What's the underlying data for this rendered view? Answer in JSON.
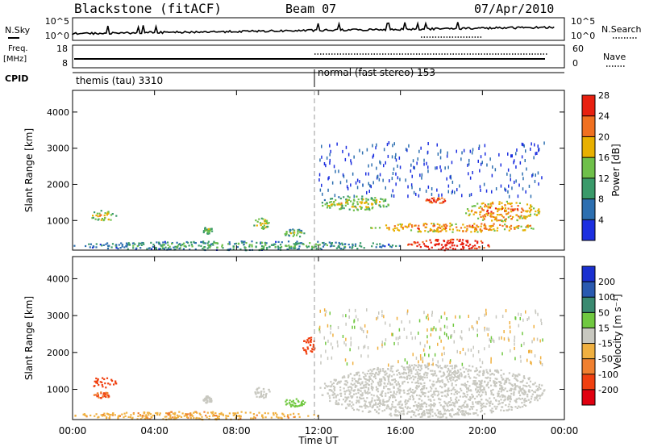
{
  "header": {
    "station": "Blackstone (fitACF)",
    "beam": "Beam 07",
    "date": "07/Apr/2010"
  },
  "top_panels": {
    "nsky_label": "N.Sky",
    "nsky_ticks": [
      "10^5",
      "10^0"
    ],
    "nsearch_label": "N.Search",
    "nsearch_ticks": [
      "10^5",
      "10^0"
    ],
    "freq_label": "Freq.",
    "freq_unit": "[MHz]",
    "freq_ticks": [
      "18",
      "8"
    ],
    "nave_label": "Nave",
    "nave_ticks": [
      "60",
      "0"
    ],
    "cpid_label": "CPID",
    "cpid_segments": [
      {
        "label": "themis (tau) 3310",
        "start_hour": 0,
        "end_hour": 12
      },
      {
        "label": "normal (fast stereo) 153",
        "start_hour": 12,
        "end_hour": 23.5
      }
    ]
  },
  "x_axis": {
    "label": "Time UT",
    "ticks": [
      "00:00",
      "04:00",
      "08:00",
      "12:00",
      "16:00",
      "20:00",
      "00:00"
    ],
    "range_hours": [
      0,
      24
    ]
  },
  "panels": [
    {
      "name": "power",
      "ylabel": "Slant Range [km]",
      "yticks": [
        "1000",
        "2000",
        "3000",
        "4000"
      ],
      "colorbar_label": "Power [dB]",
      "colorbar_ticks": [
        "4",
        "8",
        "12",
        "16",
        "20",
        "24",
        "28"
      ],
      "colorbar_colors": [
        "#1c2fe0",
        "#2d6fb0",
        "#3a9a6a",
        "#6fc04a",
        "#e8b000",
        "#f07020",
        "#e82010"
      ]
    },
    {
      "name": "velocity",
      "ylabel": "Slant Range [km]",
      "yticks": [
        "1000",
        "2000",
        "3000",
        "4000"
      ],
      "colorbar_label": "Velocity [m s⁻¹]",
      "colorbar_ticks": [
        "-200",
        "-100",
        "-50",
        "-15",
        "15",
        "50",
        "100",
        "200"
      ],
      "colorbar_colors": [
        "#e00010",
        "#f04010",
        "#f08030",
        "#f0b040",
        "#c8c8c0",
        "#70c840",
        "#3a8a70",
        "#2a5ab0",
        "#1a30d0"
      ]
    }
  ],
  "chart_data": {
    "type": "heatmap",
    "x_range_hours": [
      0,
      24
    ],
    "y_range_km": [
      180,
      4600
    ],
    "power_blobs": [
      {
        "t0": 0.8,
        "t1": 2.1,
        "r0": 1000,
        "r1": 1300,
        "dB": 14
      },
      {
        "t0": 6.3,
        "t1": 6.8,
        "r0": 650,
        "r1": 850,
        "dB": 10
      },
      {
        "t0": 8.8,
        "t1": 9.6,
        "r0": 780,
        "r1": 1100,
        "dB": 13
      },
      {
        "t0": 10.3,
        "t1": 11.3,
        "r0": 550,
        "r1": 780,
        "dB": 11
      },
      {
        "t0": 12.0,
        "t1": 15.5,
        "r0": 1300,
        "r1": 1700,
        "dB": 13
      },
      {
        "t0": 14.5,
        "t1": 22.8,
        "r0": 700,
        "r1": 950,
        "dB": 18
      },
      {
        "t0": 16.2,
        "t1": 20.5,
        "r0": 200,
        "r1": 500,
        "dB": 26
      },
      {
        "t0": 19.0,
        "t1": 22.8,
        "r0": 1000,
        "r1": 1550,
        "dB": 18
      },
      {
        "t0": 17.2,
        "t1": 18.3,
        "r0": 1500,
        "r1": 1650,
        "dB": 22
      },
      {
        "t0": 0.0,
        "t1": 16.0,
        "r0": 200,
        "r1": 450,
        "dB": 8
      }
    ],
    "velocity_blobs": [
      {
        "t0": 0.8,
        "t1": 2.1,
        "r0": 1050,
        "r1": 1350,
        "v": -150
      },
      {
        "t0": 1.0,
        "t1": 1.8,
        "r0": 780,
        "r1": 950,
        "v": -100
      },
      {
        "t0": 6.3,
        "t1": 6.8,
        "r0": 650,
        "r1": 850,
        "v": 0
      },
      {
        "t0": 8.8,
        "t1": 9.6,
        "r0": 780,
        "r1": 1100,
        "v": 0
      },
      {
        "t0": 10.3,
        "t1": 11.3,
        "r0": 550,
        "r1": 780,
        "v": 30
      },
      {
        "t0": 12.0,
        "t1": 23.0,
        "r0": 250,
        "r1": 1700,
        "v": 0
      },
      {
        "t0": 0.0,
        "t1": 12.0,
        "r0": 200,
        "r1": 420,
        "v": -40
      },
      {
        "t0": 11.2,
        "t1": 11.8,
        "r0": 1950,
        "r1": 2450,
        "v": -150
      }
    ]
  }
}
